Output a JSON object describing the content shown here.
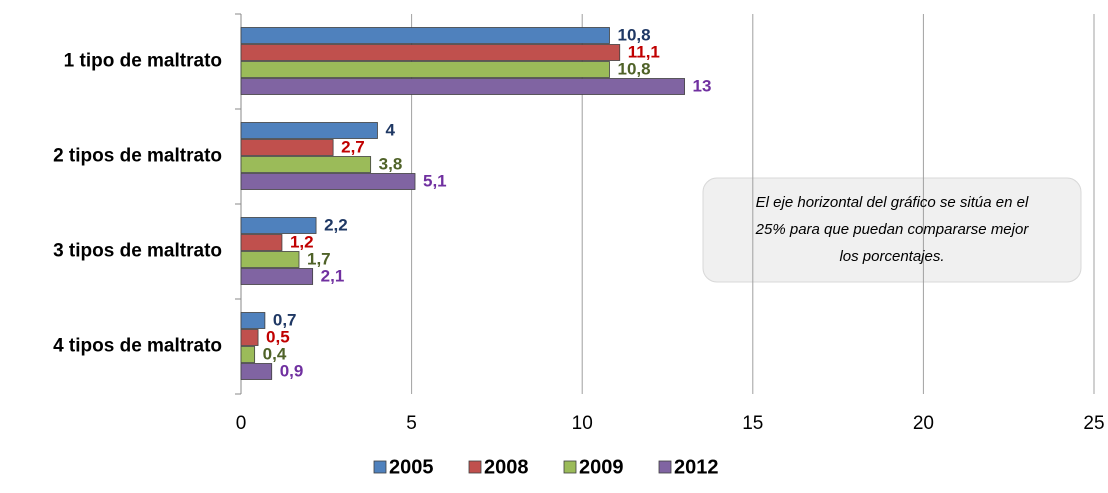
{
  "chart_data": {
    "type": "hbar",
    "categories": [
      "1 tipo de maltrato",
      "2 tipos de maltrato",
      "3 tipos de maltrato",
      "4 tipos de maltrato"
    ],
    "series": [
      {
        "name": "2005",
        "color": "#4f81bd",
        "label_color": "#1f3864",
        "values": [
          10.8,
          4,
          2.2,
          0.7
        ],
        "value_labels": [
          "10,8",
          "4",
          "2,2",
          "0,7"
        ]
      },
      {
        "name": "2008",
        "color": "#c0504d",
        "label_color": "#c00000",
        "values": [
          11.1,
          2.7,
          1.2,
          0.5
        ],
        "value_labels": [
          "11,1",
          "2,7",
          "1,2",
          "0,5"
        ]
      },
      {
        "name": "2009",
        "color": "#9bbb59",
        "label_color": "#4f6228",
        "values": [
          10.8,
          3.8,
          1.7,
          0.4
        ],
        "value_labels": [
          "10,8",
          "3,8",
          "1,7",
          "0,4"
        ]
      },
      {
        "name": "2012",
        "color": "#8064a2",
        "label_color": "#7030a0",
        "values": [
          13,
          5.1,
          2.1,
          0.9
        ],
        "value_labels": [
          "13",
          "5,1",
          "2,1",
          "0,9"
        ]
      }
    ],
    "xlim": [
      0,
      25
    ],
    "xticks": [
      0,
      5,
      10,
      15,
      20,
      25
    ],
    "grid": true,
    "legend": "bottom",
    "annotation": [
      "El eje horizontal del gráfico se sitúa en el",
      "25% para que puedan compararse mejor",
      "los porcentajes."
    ]
  }
}
